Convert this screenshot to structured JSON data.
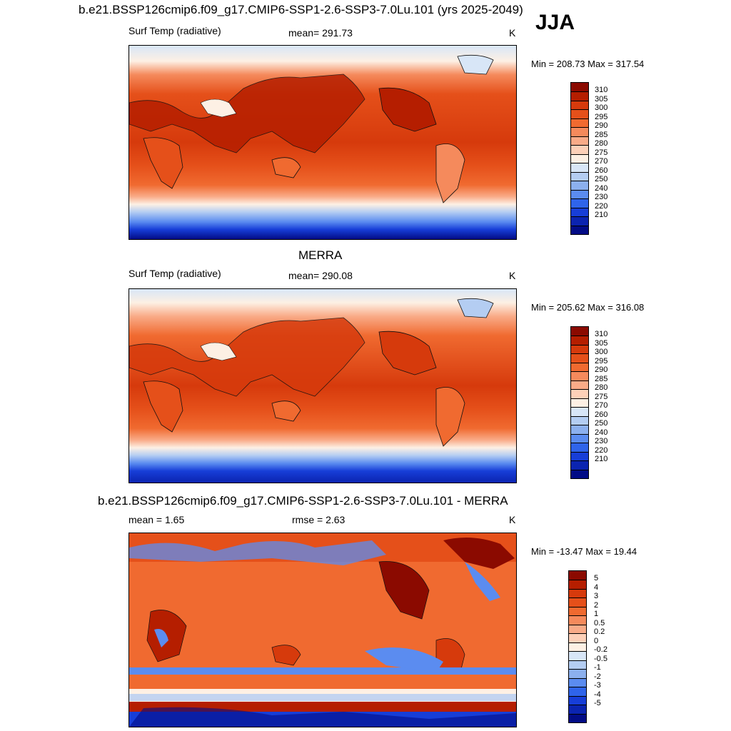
{
  "season": "JJA",
  "panels": [
    {
      "header": "b.e21.BSSP126cmip6.f09_g17.CMIP6-SSP1-2.6-SSP3-7.0Lu.101 (yrs 2025-2049)",
      "left_label": "Surf Temp (radiative)",
      "center_label": "mean= 291.73",
      "unit": "K",
      "minmax": "Min = 208.73 Max = 317.54"
    },
    {
      "header": "MERRA",
      "left_label": "Surf Temp (radiative)",
      "center_label": "mean= 290.08",
      "unit": "K",
      "minmax": "Min = 205.62 Max = 316.08"
    },
    {
      "header": "b.e21.BSSP126cmip6.f09_g17.CMIP6-SSP1-2.6-SSP3-7.0Lu.101 - MERRA",
      "left_label": "mean =   1.65",
      "center_label": "rmse =   2.63",
      "unit": "K",
      "minmax": "Min = -13.47 Max =  19.44"
    }
  ],
  "colorbars": {
    "temp": {
      "labels": [
        "310",
        "305",
        "300",
        "295",
        "290",
        "285",
        "280",
        "275",
        "270",
        "260",
        "250",
        "240",
        "230",
        "220",
        "210"
      ],
      "colors": [
        "#8b0a00",
        "#b51e00",
        "#d63a0c",
        "#e5501a",
        "#f06a30",
        "#f58a5c",
        "#f9ab88",
        "#fdd0b8",
        "#fdf0e4",
        "#d8e6f7",
        "#b4cdf2",
        "#8cb0ee",
        "#5b8cf0",
        "#2f64ea",
        "#173ed8",
        "#0b24b0",
        "#020c86"
      ]
    },
    "diff": {
      "labels": [
        "5",
        "4",
        "3",
        "2",
        "1",
        "0.5",
        "0.2",
        "0",
        "-0.2",
        "-0.5",
        "-1",
        "-2",
        "-3",
        "-4",
        "-5"
      ],
      "colors": [
        "#8b0a00",
        "#b51e00",
        "#d63a0c",
        "#e5501a",
        "#f06a30",
        "#f58a5c",
        "#f9ab88",
        "#fdd0b8",
        "#fdf0e4",
        "#d8e6f7",
        "#b4cdf2",
        "#8cb0ee",
        "#5b8cf0",
        "#2f64ea",
        "#173ed8",
        "#0b24b0",
        "#020c86"
      ]
    }
  }
}
